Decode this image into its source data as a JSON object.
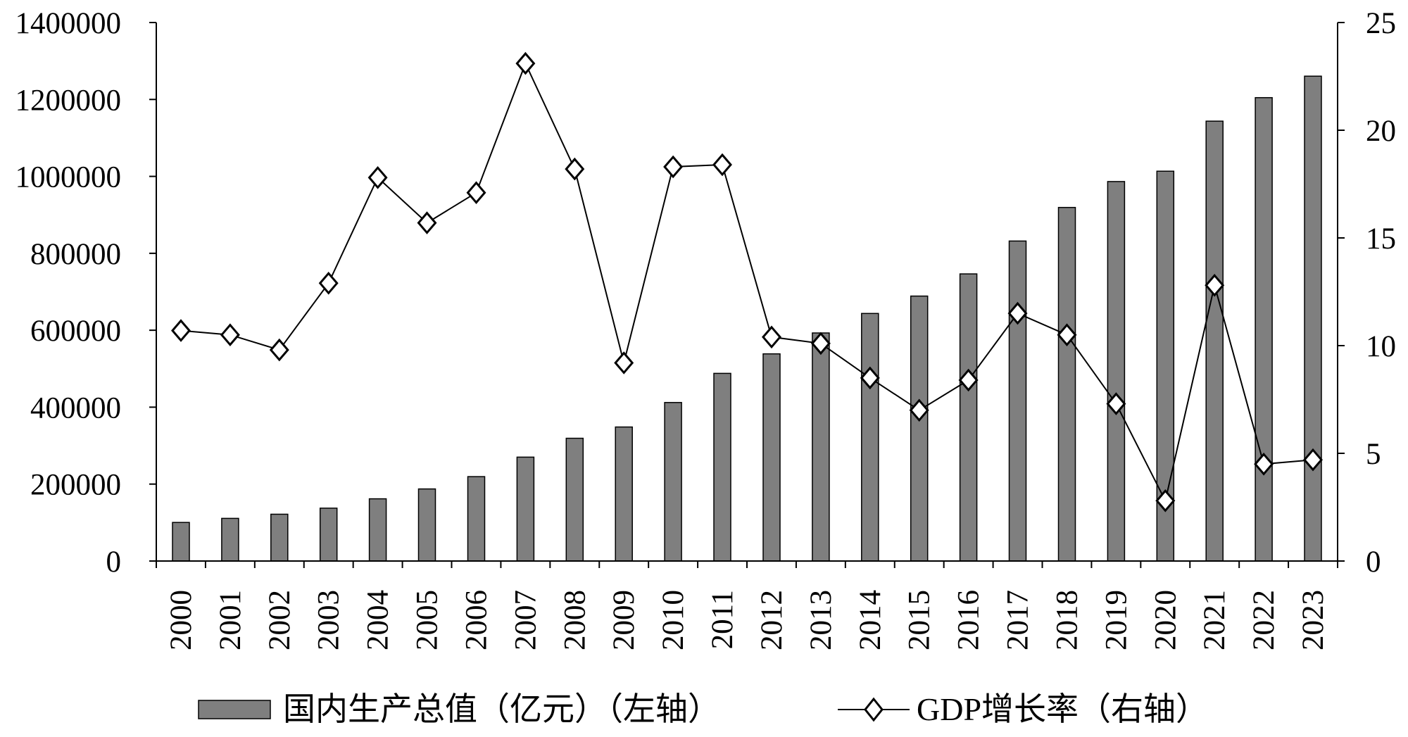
{
  "chart_data": {
    "type": "bar+line",
    "title": "",
    "categories": [
      "2000",
      "2001",
      "2002",
      "2003",
      "2004",
      "2005",
      "2006",
      "2007",
      "2008",
      "2009",
      "2010",
      "2011",
      "2012",
      "2013",
      "2014",
      "2015",
      "2016",
      "2017",
      "2018",
      "2019",
      "2020",
      "2021",
      "2022",
      "2023"
    ],
    "series": [
      {
        "name": "国内生产总值（亿元）（左轴）",
        "type": "bar",
        "axis": "left",
        "color": "#7f7f7f",
        "values": [
          100280,
          110863,
          121717,
          137422,
          161840,
          187319,
          219439,
          270092,
          319245,
          348518,
          412119,
          487940,
          538580,
          592963,
          643563,
          688858,
          746395,
          832036,
          919281,
          986515,
          1013567,
          1143670,
          1204724,
          1260582
        ]
      },
      {
        "name": "GDP增长率（右轴）",
        "type": "line",
        "axis": "right",
        "color": "#000000",
        "marker": "diamond",
        "values": [
          10.7,
          10.5,
          9.8,
          12.9,
          17.8,
          15.7,
          17.1,
          23.1,
          18.2,
          9.2,
          18.3,
          18.4,
          10.4,
          10.1,
          8.5,
          7.0,
          8.4,
          11.5,
          10.5,
          7.3,
          2.8,
          12.8,
          4.5,
          4.7
        ]
      }
    ],
    "y_left": {
      "ylim": [
        0,
        1400000
      ],
      "ticks": [
        "0",
        "200000",
        "400000",
        "600000",
        "800000",
        "1000000",
        "1200000",
        "1400000"
      ]
    },
    "y_right": {
      "ylim": [
        0,
        25
      ],
      "ticks": [
        "0",
        "5",
        "10",
        "15",
        "20",
        "25"
      ]
    },
    "legend_position": "bottom"
  }
}
